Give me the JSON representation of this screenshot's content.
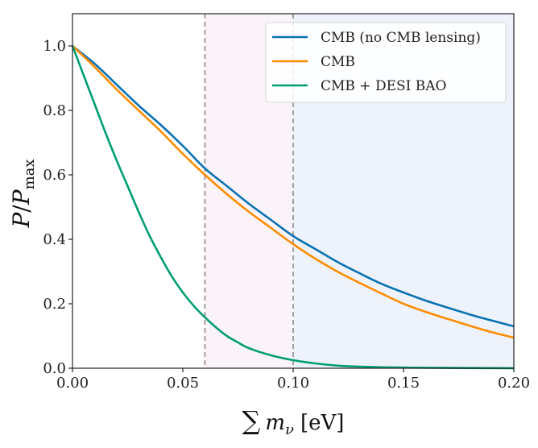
{
  "chart_data": {
    "type": "line",
    "title": "",
    "xlabel": "∑ m_ν [eV]",
    "ylabel": "P / P_max",
    "xlim": [
      0.0,
      0.2
    ],
    "ylim": [
      0.0,
      1.1
    ],
    "xticks": [
      0.0,
      0.05,
      0.1,
      0.15,
      0.2
    ],
    "xtick_labels": [
      "0.00",
      "0.05",
      "0.10",
      "0.15",
      "0.20"
    ],
    "yticks": [
      0.0,
      0.2,
      0.4,
      0.6,
      0.8,
      1.0
    ],
    "ytick_labels": [
      "0.0",
      "0.2",
      "0.4",
      "0.6",
      "0.8",
      "1.0"
    ],
    "grid": false,
    "legend_position": "top-right",
    "vlines": [
      {
        "x": 0.06,
        "style": "dashed",
        "color": "#8a8a8a"
      },
      {
        "x": 0.1,
        "style": "dashed",
        "color": "#8a8a8a"
      }
    ],
    "shaded_regions": [
      {
        "x_from": 0.06,
        "x_to": 0.1,
        "color": "#faf3fa"
      },
      {
        "x_from": 0.1,
        "x_to": 0.2,
        "color": "#eef3fb"
      }
    ],
    "series": [
      {
        "name": "CMB (no CMB lensing)",
        "color": "#0a72b3",
        "x": [
          0.0,
          0.01,
          0.02,
          0.03,
          0.04,
          0.05,
          0.06,
          0.07,
          0.08,
          0.09,
          0.1,
          0.11,
          0.12,
          0.13,
          0.14,
          0.15,
          0.16,
          0.17,
          0.18,
          0.19,
          0.2
        ],
        "y": [
          1.0,
          0.945,
          0.88,
          0.815,
          0.755,
          0.69,
          0.62,
          0.565,
          0.51,
          0.46,
          0.41,
          0.37,
          0.33,
          0.295,
          0.262,
          0.235,
          0.21,
          0.188,
          0.167,
          0.148,
          0.13
        ]
      },
      {
        "name": "CMB",
        "color": "#ff8c00",
        "x": [
          0.0,
          0.01,
          0.02,
          0.03,
          0.04,
          0.05,
          0.06,
          0.07,
          0.08,
          0.09,
          0.1,
          0.11,
          0.12,
          0.13,
          0.14,
          0.15,
          0.16,
          0.17,
          0.18,
          0.19,
          0.2
        ],
        "y": [
          1.0,
          0.935,
          0.865,
          0.8,
          0.735,
          0.665,
          0.6,
          0.54,
          0.485,
          0.435,
          0.385,
          0.34,
          0.3,
          0.265,
          0.232,
          0.2,
          0.175,
          0.153,
          0.132,
          0.112,
          0.095
        ]
      },
      {
        "name": "CMB + DESI BAO",
        "color": "#009e73",
        "x": [
          0.0,
          0.005,
          0.01,
          0.015,
          0.02,
          0.025,
          0.03,
          0.035,
          0.04,
          0.045,
          0.05,
          0.055,
          0.06,
          0.065,
          0.07,
          0.075,
          0.08,
          0.09,
          0.1,
          0.11,
          0.12,
          0.13,
          0.14,
          0.15,
          0.17,
          0.2
        ],
        "y": [
          1.0,
          0.91,
          0.82,
          0.73,
          0.645,
          0.565,
          0.485,
          0.41,
          0.345,
          0.285,
          0.235,
          0.193,
          0.158,
          0.127,
          0.1,
          0.08,
          0.062,
          0.04,
          0.025,
          0.015,
          0.008,
          0.005,
          0.003,
          0.002,
          0.001,
          0.0
        ]
      }
    ]
  }
}
